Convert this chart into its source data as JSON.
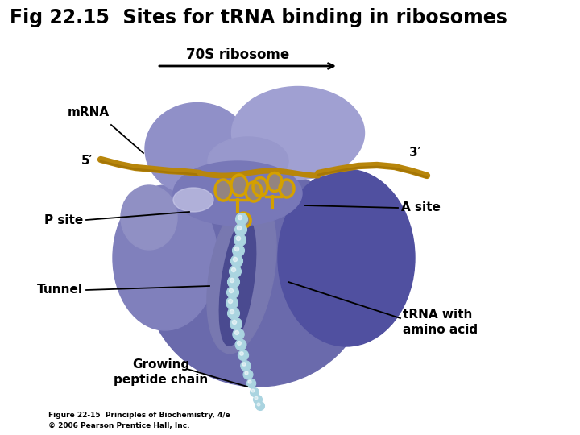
{
  "title": "Fig 22.15  Sites for t.RNA binding in ribosomes",
  "background_color": "#ffffff",
  "col_upper_sub": "#9090c8",
  "col_main_body": "#6868a8",
  "col_left_lobe": "#8888be",
  "col_right_lobe": "#5858a0",
  "col_tunnel_shadow": "#4848888",
  "col_small_bump": "#a0a0d0",
  "mrna_color": "#b8860b",
  "trna_color": "#d4a000",
  "peptide_color": "#aad4e0",
  "peptide_edge": "#88b8cc",
  "arrow_color": "#000000",
  "label_70s": "70S ribosome",
  "label_mrna": "mRNA",
  "label_5prime": "5′",
  "label_3prime": "3′",
  "label_psite": "P site",
  "label_asite": "A site",
  "label_tunnel": "Tunnel",
  "label_trna": "tRNA with\namino acid",
  "label_growing": "Growing\npeptide chain",
  "caption_line1": "Figure 22-15  Principles of Biochemistry, 4/e",
  "caption_line2": "© 2006 Pearson Prentice Hall, Inc.",
  "figsize": [
    7.2,
    5.4
  ],
  "dpi": 100
}
